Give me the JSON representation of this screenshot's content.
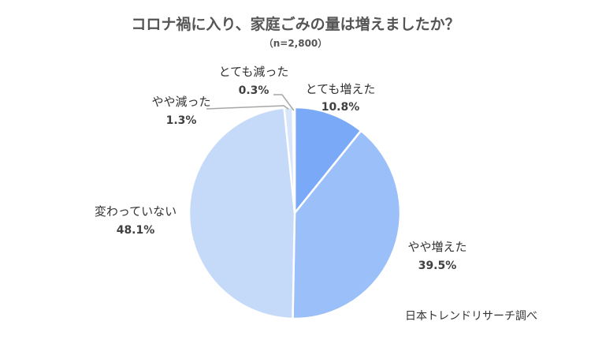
{
  "chart_data": {
    "type": "pie",
    "title": "コロナ禍に入り、家庭ごみの量は増えましたか？",
    "subtitle": "（n=2,800）",
    "categories": [
      "とても増えた",
      "やや増えた",
      "変わっていない",
      "やや減った",
      "とても減った"
    ],
    "values": [
      10.8,
      39.5,
      48.1,
      1.3,
      0.3
    ],
    "value_labels": [
      "10.8%",
      "39.5%",
      "48.1%",
      "1.3%",
      "0.3%"
    ],
    "colors": [
      "#7aaaf7",
      "#9bbff8",
      "#c5daf9",
      "#d7e6fb",
      "#e7f0fc"
    ],
    "start_angle": "12 o'clock, clockwise",
    "legend": "none (data labels)"
  },
  "source": "日本トレンドリサーチ調べ"
}
